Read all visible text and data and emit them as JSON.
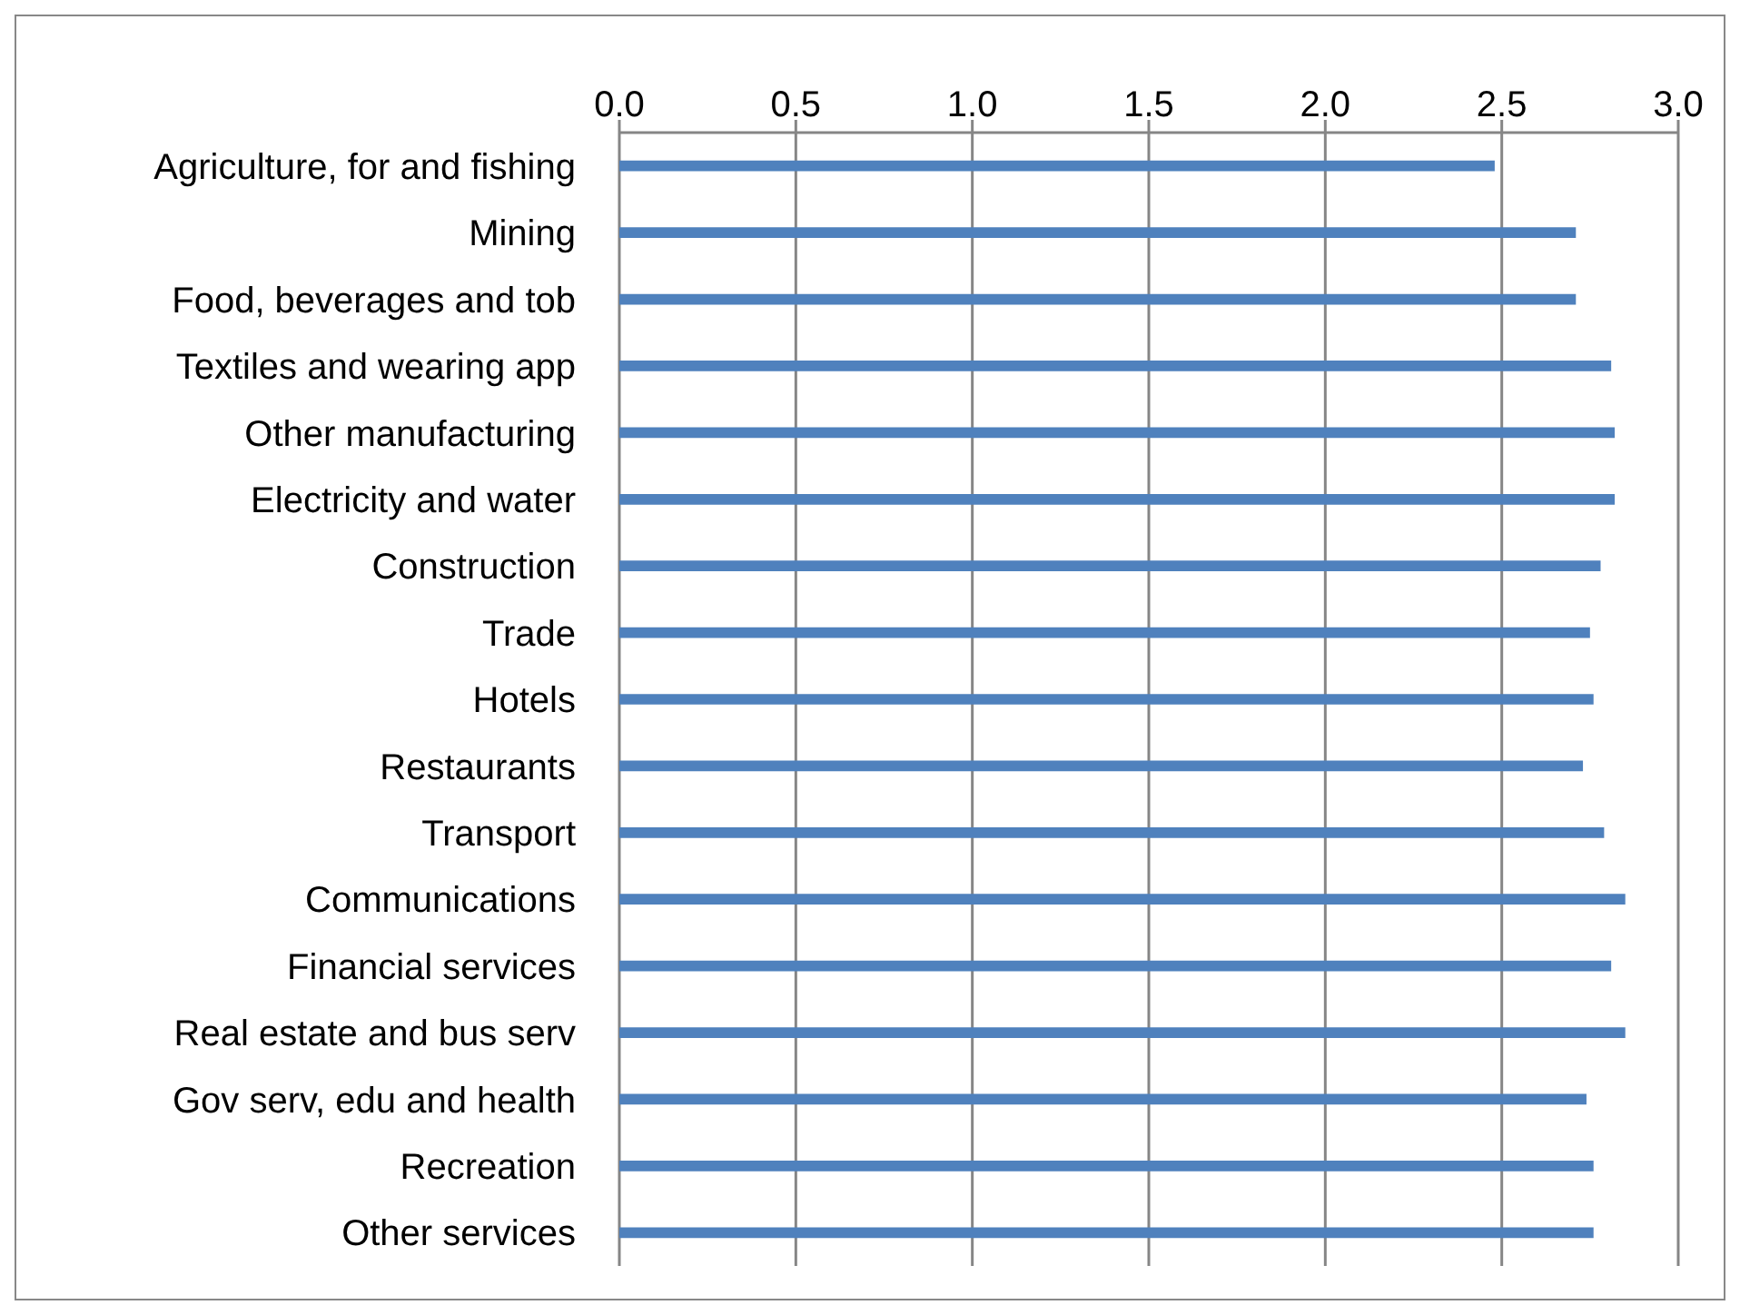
{
  "chart_data": {
    "type": "bar",
    "orientation": "horizontal",
    "categories": [
      "Agriculture, for and fishing",
      "Mining",
      "Food, beverages and tob",
      "Textiles and wearing app",
      "Other manufacturing",
      "Electricity and water",
      "Construction",
      "Trade",
      "Hotels",
      "Restaurants",
      "Transport",
      "Communications",
      "Financial services",
      "Real estate and bus serv",
      "Gov serv, edu and health",
      "Recreation",
      "Other services"
    ],
    "values": [
      2.48,
      2.71,
      2.71,
      2.81,
      2.82,
      2.82,
      2.78,
      2.75,
      2.76,
      2.73,
      2.79,
      2.85,
      2.81,
      2.85,
      2.74,
      2.76,
      2.76
    ],
    "color": "#4f81bd",
    "xlim": [
      0,
      3
    ],
    "xticks": [
      {
        "value": 0,
        "label": "0.0"
      },
      {
        "value": 0.5,
        "label": "0.5"
      },
      {
        "value": 1,
        "label": "1.0"
      },
      {
        "value": 1.5,
        "label": "1.5"
      },
      {
        "value": 2,
        "label": "2.0"
      },
      {
        "value": 2.5,
        "label": "2.5"
      },
      {
        "value": 3,
        "label": "3.0"
      }
    ],
    "grid": "x"
  }
}
